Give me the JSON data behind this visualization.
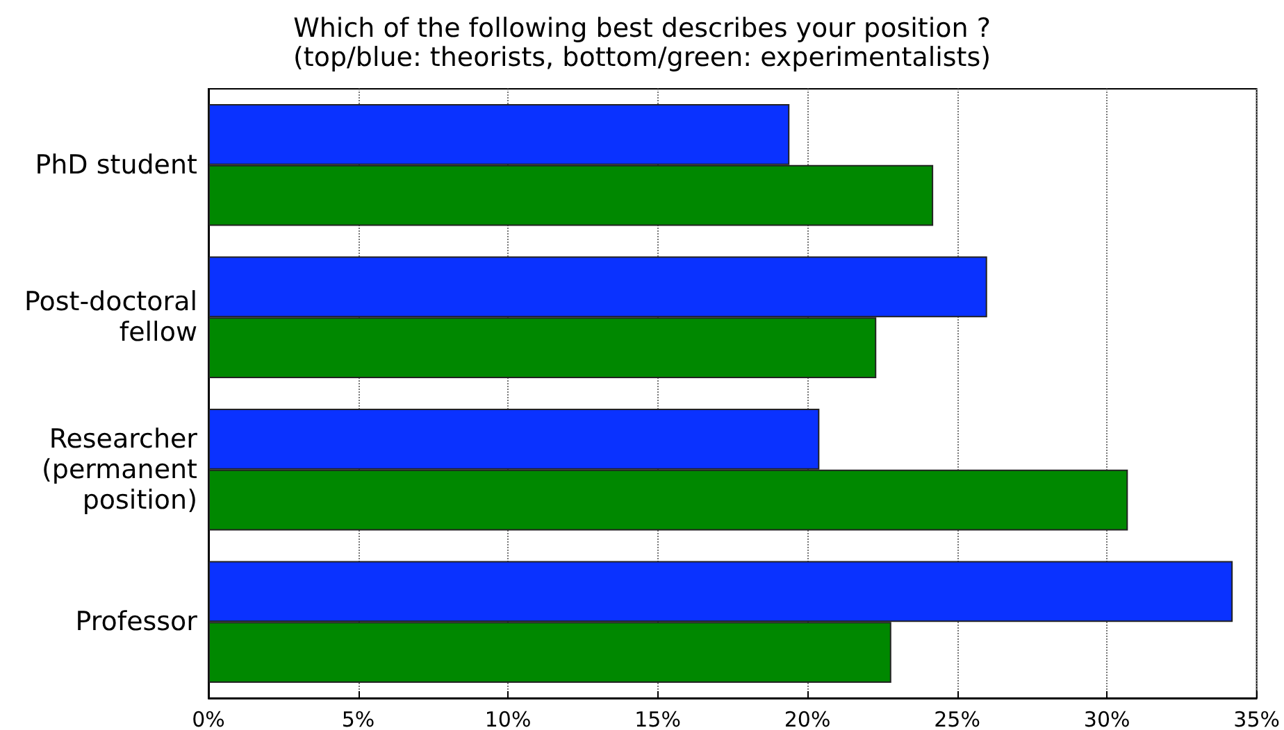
{
  "chart_data": {
    "type": "bar",
    "orientation": "horizontal",
    "title": "Which of the following best describes your position ?",
    "subtitle": "(top/blue: theorists, bottom/green: experimentalists)",
    "categories": [
      "PhD student",
      "Post-doctoral\nfellow",
      "Researcher\n(permanent\nposition)",
      "Professor"
    ],
    "series": [
      {
        "color": "#0a32ff",
        "values": [
          19.4,
          26.0,
          20.4,
          34.2
        ]
      },
      {
        "color": "#008800",
        "values": [
          24.2,
          22.3,
          30.7,
          22.8
        ]
      }
    ],
    "xlim": [
      0,
      35
    ],
    "xticks": [
      {
        "value": 0,
        "label": "0%"
      },
      {
        "value": 5,
        "label": "5%"
      },
      {
        "value": 10,
        "label": "10%"
      },
      {
        "value": 15,
        "label": "15%"
      },
      {
        "value": 20,
        "label": "20%"
      },
      {
        "value": 25,
        "label": "25%"
      },
      {
        "value": 30,
        "label": "30%"
      },
      {
        "value": 35,
        "label": "35%"
      }
    ],
    "grid": "x"
  }
}
